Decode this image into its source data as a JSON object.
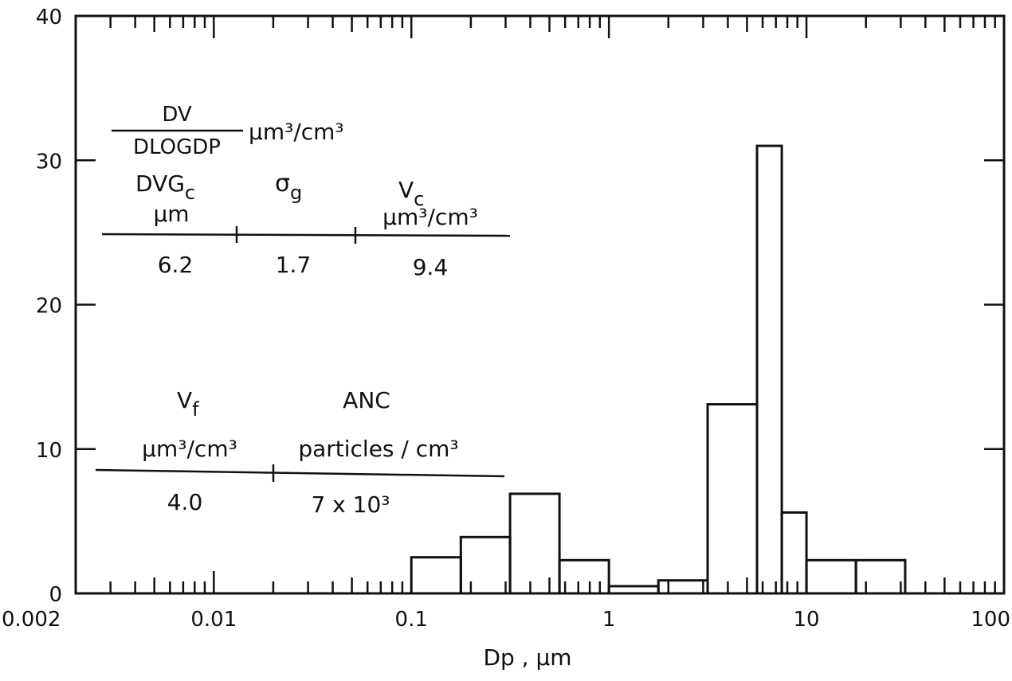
{
  "chart_data": {
    "type": "bar",
    "xscale": "log",
    "xlim": [
      0.002,
      100
    ],
    "ylim": [
      0,
      40
    ],
    "xlabel": "Dp , μm",
    "ylabel": "",
    "title": "",
    "grid": false,
    "x_tick_labels": [
      {
        "value": 0.002,
        "label": "0.002"
      },
      {
        "value": 0.01,
        "label": "0.01"
      },
      {
        "value": 0.1,
        "label": "0.1"
      },
      {
        "value": 1,
        "label": "1"
      },
      {
        "value": 10,
        "label": "10"
      },
      {
        "value": 100,
        "label": "100"
      }
    ],
    "y_tick_labels": [
      {
        "value": 0,
        "label": "0"
      },
      {
        "value": 10,
        "label": "10"
      },
      {
        "value": 20,
        "label": "20"
      },
      {
        "value": 30,
        "label": "30"
      },
      {
        "value": 40,
        "label": "40"
      }
    ],
    "bins": [
      {
        "x0": 0.1,
        "x1": 0.178,
        "value": 2.5
      },
      {
        "x0": 0.178,
        "x1": 0.316,
        "value": 3.9
      },
      {
        "x0": 0.316,
        "x1": 0.562,
        "value": 6.9
      },
      {
        "x0": 0.562,
        "x1": 1.0,
        "value": 2.3
      },
      {
        "x0": 1.0,
        "x1": 1.78,
        "value": 0.5
      },
      {
        "x0": 1.78,
        "x1": 3.16,
        "value": 0.9
      },
      {
        "x0": 3.16,
        "x1": 5.62,
        "value": 13.1
      },
      {
        "x0": 5.62,
        "x1": 7.5,
        "value": 31.0
      },
      {
        "x0": 7.5,
        "x1": 10.0,
        "value": 5.6
      },
      {
        "x0": 10.0,
        "x1": 17.8,
        "value": 2.3
      },
      {
        "x0": 17.8,
        "x1": 31.6,
        "value": 2.3
      }
    ]
  },
  "annotations": {
    "ylabel_numerator": "DV",
    "ylabel_denominator": "DLOGDP",
    "ylabel_unit": "μm³/cm³",
    "coarse_table": {
      "col1_head1": "DVG",
      "col1_head1_sub": "c",
      "col1_head2": "μm",
      "col2_head": "σ",
      "col2_head_sub": "g",
      "col3_head1": "V",
      "col3_head1_sub": "c",
      "col3_head2": "μm³/cm³",
      "col1_value": "6.2",
      "col2_value": "1.7",
      "col3_value": "9.4"
    },
    "fine_table": {
      "col1_head1": "V",
      "col1_head1_sub": "f",
      "col1_head2": "μm³/cm³",
      "col2_head1": "ANC",
      "col2_head2": "particles / cm³",
      "col1_value": "4.0",
      "col2_value": "7 x 10³"
    }
  }
}
